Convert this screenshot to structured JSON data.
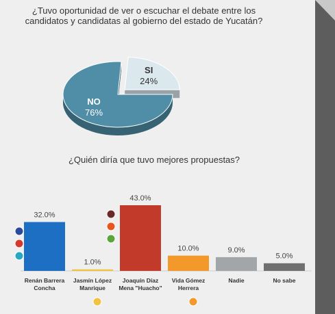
{
  "chart_data": [
    {
      "type": "pie",
      "title": "¿Tuvo oportunidad de ver o escuchar el debate entre los candidatos y candidatas al gobierno del estado de Yucatán?",
      "categories": [
        "NO",
        "SI"
      ],
      "values": [
        76,
        24
      ],
      "value_labels": [
        "76%",
        "24%"
      ],
      "colors": [
        "#4f8ea6",
        "#dbe9ef"
      ]
    },
    {
      "type": "bar",
      "title": "¿Quién diría que tuvo mejores propuestas?",
      "categories": [
        "Renán Barrera Concha",
        "Jasmín López Manrique",
        "Joaquín Díaz Mena \"Huacho\"",
        "Vida Gómez Herrera",
        "Nadie",
        "No sabe"
      ],
      "values": [
        32,
        1,
        43,
        10,
        9,
        5
      ],
      "value_labels": [
        "32.0%",
        "1.0%",
        "43.0%",
        "10.0%",
        "9.0%",
        "5.0%"
      ],
      "colors": [
        "#1d6fc4",
        "#f2c341",
        "#c23a2a",
        "#f3982a",
        "#a3a6a8",
        "#707070"
      ]
    }
  ]
}
